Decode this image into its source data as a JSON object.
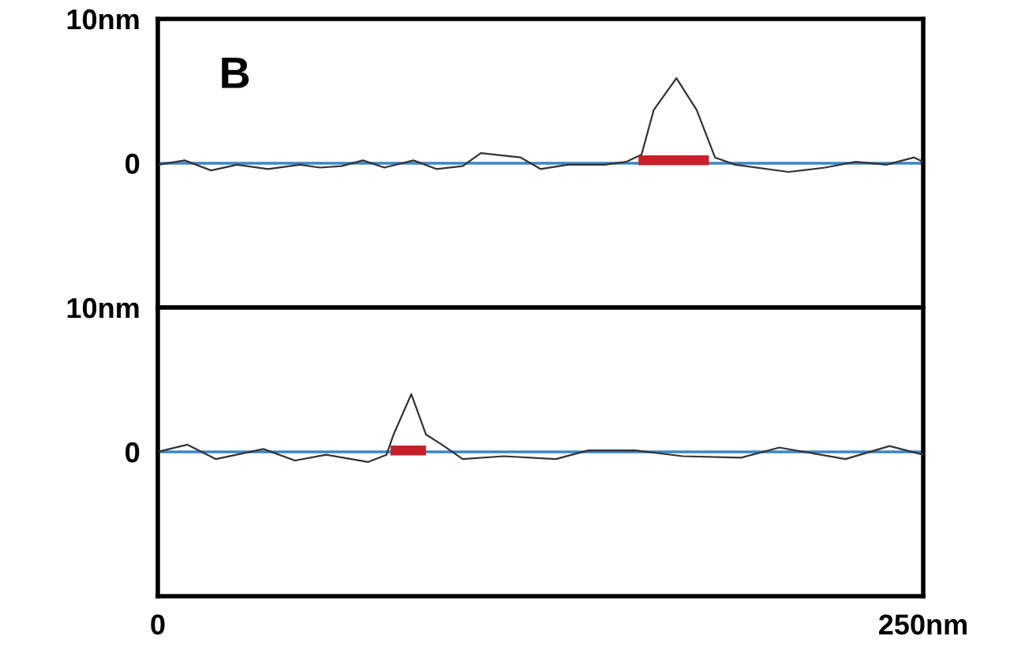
{
  "chart_data": [
    {
      "type": "line",
      "title": "B",
      "xlim": [
        0,
        250
      ],
      "ylim": [
        -10,
        10
      ],
      "yticks": [
        0,
        {
          "value": 10,
          "label": "10nm"
        }
      ],
      "tick_labels": "y",
      "legend": false,
      "series": [
        {
          "color": "#333333",
          "x": [
            0.2,
            8.8,
            17.4,
            25.9,
            36,
            46.4,
            53,
            60,
            67,
            74,
            83.5,
            91,
            99.6,
            105.5,
            118.5,
            125,
            134,
            146,
            153,
            158,
            162,
            169.4,
            176,
            182,
            188.6,
            206,
            218,
            228,
            238,
            247,
            250
          ],
          "values": [
            -0.1,
            0.2,
            -0.5,
            -0.1,
            -0.4,
            -0.1,
            -0.3,
            -0.2,
            0.2,
            -0.3,
            0.2,
            -0.4,
            -0.2,
            0.7,
            0.4,
            -0.4,
            -0.1,
            -0.1,
            0.1,
            0.6,
            3.7,
            5.9,
            3.7,
            0.4,
            -0.1,
            -0.6,
            -0.3,
            0.1,
            -0.1,
            0.4,
            0.1
          ]
        },
        {
          "color": "#c8202a",
          "x": [
            157,
            180
          ],
          "values": [
            0.2,
            0.2
          ]
        }
      ],
      "ref_lines": [
        {
          "axis": "y",
          "value": 0,
          "color": "#3a86c8"
        }
      ]
    },
    {
      "type": "line",
      "xlim": [
        0,
        250
      ],
      "ylim": [
        -10,
        10
      ],
      "xticks": [
        0,
        {
          "value": 250,
          "label": "250nm"
        }
      ],
      "yticks": [
        0,
        {
          "value": 10,
          "label": "10nm"
        }
      ],
      "legend": false,
      "series": [
        {
          "color": "#333333",
          "x": [
            0,
            9.6,
            19,
            34.5,
            44.8,
            55,
            68.7,
            74.7,
            77,
            82.8,
            87.6,
            92.8,
            99.6,
            113,
            130,
            140.6,
            156,
            171.5,
            190.5,
            203,
            224.6,
            239,
            250
          ],
          "values": [
            0,
            0.5,
            -0.5,
            0.2,
            -0.6,
            -0.2,
            -0.7,
            -0.2,
            1.2,
            4.0,
            1.2,
            0.5,
            -0.5,
            -0.3,
            -0.5,
            0.1,
            0.1,
            -0.3,
            -0.4,
            0.3,
            -0.5,
            0.4,
            -0.2
          ]
        },
        {
          "color": "#c8202a",
          "x": [
            76,
            87.6
          ],
          "values": [
            0.1,
            0.1
          ]
        }
      ],
      "ref_lines": [
        {
          "axis": "y",
          "value": 0,
          "color": "#3a86c8"
        }
      ]
    }
  ]
}
